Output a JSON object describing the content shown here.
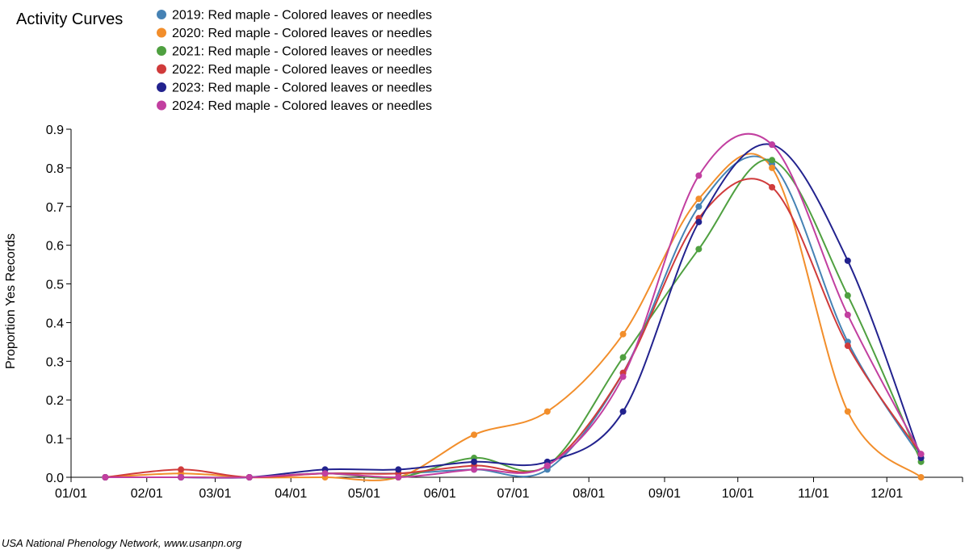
{
  "chart_data": {
    "type": "line",
    "title": "Activity Curves",
    "xlabel": "",
    "ylabel": "Proportion Yes Records",
    "ylim": [
      0,
      0.9
    ],
    "yticks": [
      "0.0",
      "0.1",
      "0.2",
      "0.3",
      "0.4",
      "0.5",
      "0.6",
      "0.7",
      "0.8",
      "0.9"
    ],
    "xticks": [
      "01/01",
      "02/01",
      "03/01",
      "04/01",
      "05/01",
      "06/01",
      "07/01",
      "08/01",
      "09/01",
      "10/01",
      "11/01",
      "12/01"
    ],
    "x": [
      "01/15",
      "02/15",
      "03/15",
      "04/15",
      "05/15",
      "06/15",
      "07/15",
      "08/15",
      "09/15",
      "10/15",
      "11/15",
      "12/15"
    ],
    "grid": false,
    "legend_position": "top",
    "series": [
      {
        "name": "2019: Red maple - Colored leaves or needles",
        "color": "#4682b4",
        "values": [
          0,
          0,
          0,
          0.01,
          0.01,
          0.02,
          0.02,
          0.27,
          0.7,
          0.81,
          0.35,
          0.05
        ]
      },
      {
        "name": "2020: Red maple - Colored leaves or needles",
        "color": "#f28e2b",
        "values": [
          0,
          0.01,
          0,
          0,
          0,
          0.11,
          0.17,
          0.37,
          0.72,
          0.8,
          0.17,
          0
        ]
      },
      {
        "name": "2021: Red maple - Colored leaves or needles",
        "color": "#4fa040",
        "values": [
          0,
          0,
          0,
          0.01,
          0,
          0.05,
          0.03,
          0.31,
          0.59,
          0.82,
          0.47,
          0.04
        ]
      },
      {
        "name": "2022: Red maple - Colored leaves or needles",
        "color": "#d03b3b",
        "values": [
          0,
          0.02,
          0,
          0.01,
          0.01,
          0.03,
          0.03,
          0.27,
          0.67,
          0.75,
          0.34,
          0.06
        ]
      },
      {
        "name": "2023: Red maple - Colored leaves or needles",
        "color": "#22228e",
        "values": [
          0,
          0,
          0,
          0.02,
          0.02,
          0.04,
          0.04,
          0.17,
          0.66,
          0.86,
          0.56,
          0.05
        ]
      },
      {
        "name": "2024: Red maple - Colored leaves or needles",
        "color": "#c23fa0",
        "values": [
          0,
          0,
          0,
          0.01,
          0,
          0.02,
          0.03,
          0.26,
          0.78,
          0.86,
          0.42,
          0.06
        ]
      }
    ]
  },
  "footer": {
    "credit": "USA National Phenology Network, www.usanpn.org"
  }
}
